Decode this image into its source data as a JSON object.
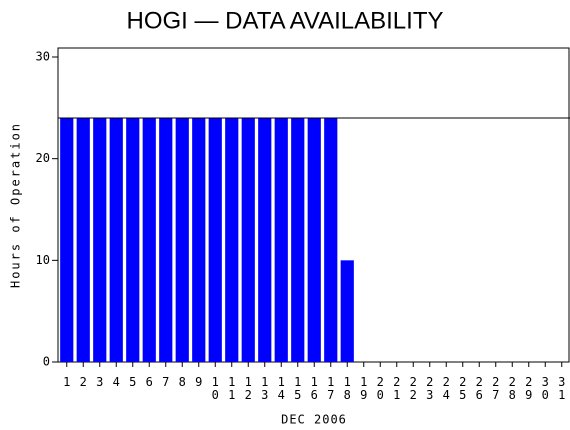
{
  "chart_data": {
    "type": "bar",
    "title": "HOGI — DATA AVAILABILITY",
    "x_label": "DEC 2006",
    "y_label": "Hours of Operation",
    "categories": [
      "1",
      "2",
      "3",
      "4",
      "5",
      "6",
      "7",
      "8",
      "9",
      "10",
      "11",
      "12",
      "13",
      "14",
      "15",
      "16",
      "17",
      "18",
      "19",
      "20",
      "21",
      "22",
      "23",
      "24",
      "25",
      "26",
      "27",
      "28",
      "29",
      "30",
      "31"
    ],
    "values": [
      24,
      24,
      24,
      24,
      24,
      24,
      24,
      24,
      24,
      24,
      24,
      24,
      24,
      24,
      24,
      24,
      24,
      10,
      0,
      0,
      0,
      0,
      0,
      0,
      0,
      0,
      0,
      0,
      0,
      0,
      0
    ],
    "color": "#0000ff",
    "reference_line": 24,
    "ylim": [
      0,
      30
    ],
    "yticks": [
      0,
      10,
      20,
      30
    ],
    "grid": false
  }
}
